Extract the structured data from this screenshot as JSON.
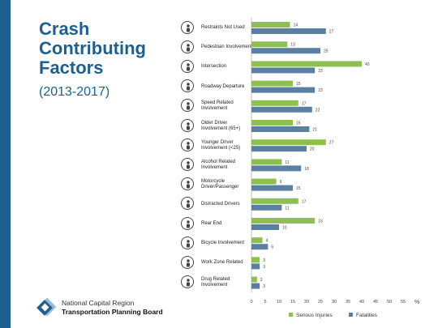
{
  "title_lines": [
    "Crash",
    "Contributing",
    "Factors"
  ],
  "subtitle": "(2013-2017)",
  "organization": {
    "line1": "National Capital Region",
    "line2": "Transportation Planning Board"
  },
  "colors": {
    "accent": "#1d5f8e",
    "serious": "#8dc04f",
    "fatal": "#5b7fa0"
  },
  "icons": [
    "seatbelt-icon",
    "pedestrian-icon",
    "intersection-icon",
    "roadway-departure-icon",
    "speedometer-icon",
    "older-driver-icon",
    "younger-driver-icon",
    "alcohol-icon",
    "motorcycle-icon",
    "distracted-phone-icon",
    "rear-end-icon",
    "bicycle-icon",
    "work-zone-icon",
    "drug-icon"
  ],
  "chart_data": {
    "type": "bar",
    "orientation": "horizontal",
    "categories": [
      "Restraints Not Used",
      "Pedestrian Involvement",
      "Intersection",
      "Roadway Departure",
      "Speed Related Involvement",
      "Older Driver Involvement (65+)",
      "Younger Driver Involvement (<25)",
      "Alcohol Related Involvement",
      "Motorcycle Driver/Passenger",
      "Distracted Drivers",
      "Rear End",
      "Bicycle Involvement",
      "Work Zone Related",
      "Drug Related Involvement"
    ],
    "series": [
      {
        "name": "Serious Injuries",
        "color": "#8dc04f",
        "values": [
          14,
          13,
          40,
          15,
          17,
          15,
          27,
          11,
          9,
          17,
          23,
          4,
          3,
          2
        ]
      },
      {
        "name": "Fatalities",
        "color": "#5b7fa0",
        "values": [
          27,
          25,
          23,
          23,
          22,
          21,
          20,
          18,
          15,
          11,
          10,
          6,
          3,
          3
        ]
      }
    ],
    "xticks": [
      "0",
      "5",
      "10",
      "15",
      "20",
      "25",
      "30",
      "35",
      "40",
      "45",
      "50",
      "55"
    ],
    "xunit": "%",
    "xlim": [
      0,
      55
    ],
    "legend_position": "bottom",
    "grid": false
  }
}
